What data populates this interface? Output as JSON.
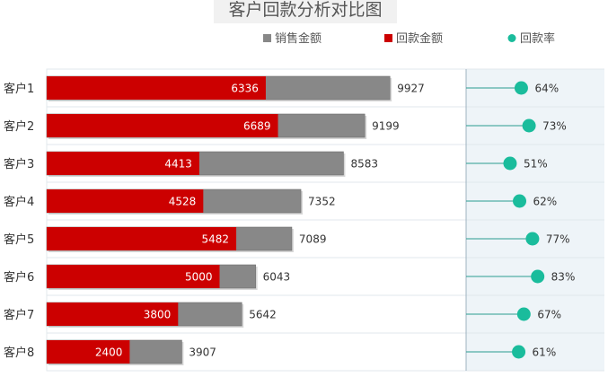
{
  "chart_data": {
    "type": "bar",
    "orientation": "horizontal",
    "title": "客户回款分析对比图",
    "categories": [
      "客户1",
      "客户2",
      "客户3",
      "客户4",
      "客户5",
      "客户6",
      "客户7",
      "客户8"
    ],
    "series": [
      {
        "name": "销售金额",
        "values": [
          9927,
          9199,
          8583,
          7352,
          7089,
          6043,
          5642,
          3907
        ],
        "color": "#888888"
      },
      {
        "name": "回款金额",
        "values": [
          6336,
          6689,
          4413,
          4528,
          5482,
          5000,
          3800,
          2400
        ],
        "color": "#cc0000"
      },
      {
        "name": "回款率",
        "type": "scatter",
        "values": [
          "64%",
          "73%",
          "51%",
          "62%",
          "77%",
          "83%",
          "67%",
          "61%"
        ],
        "color": "#1abc9c"
      }
    ],
    "xlim": [
      0,
      10000
    ],
    "legend": "top-right",
    "grid": true
  }
}
